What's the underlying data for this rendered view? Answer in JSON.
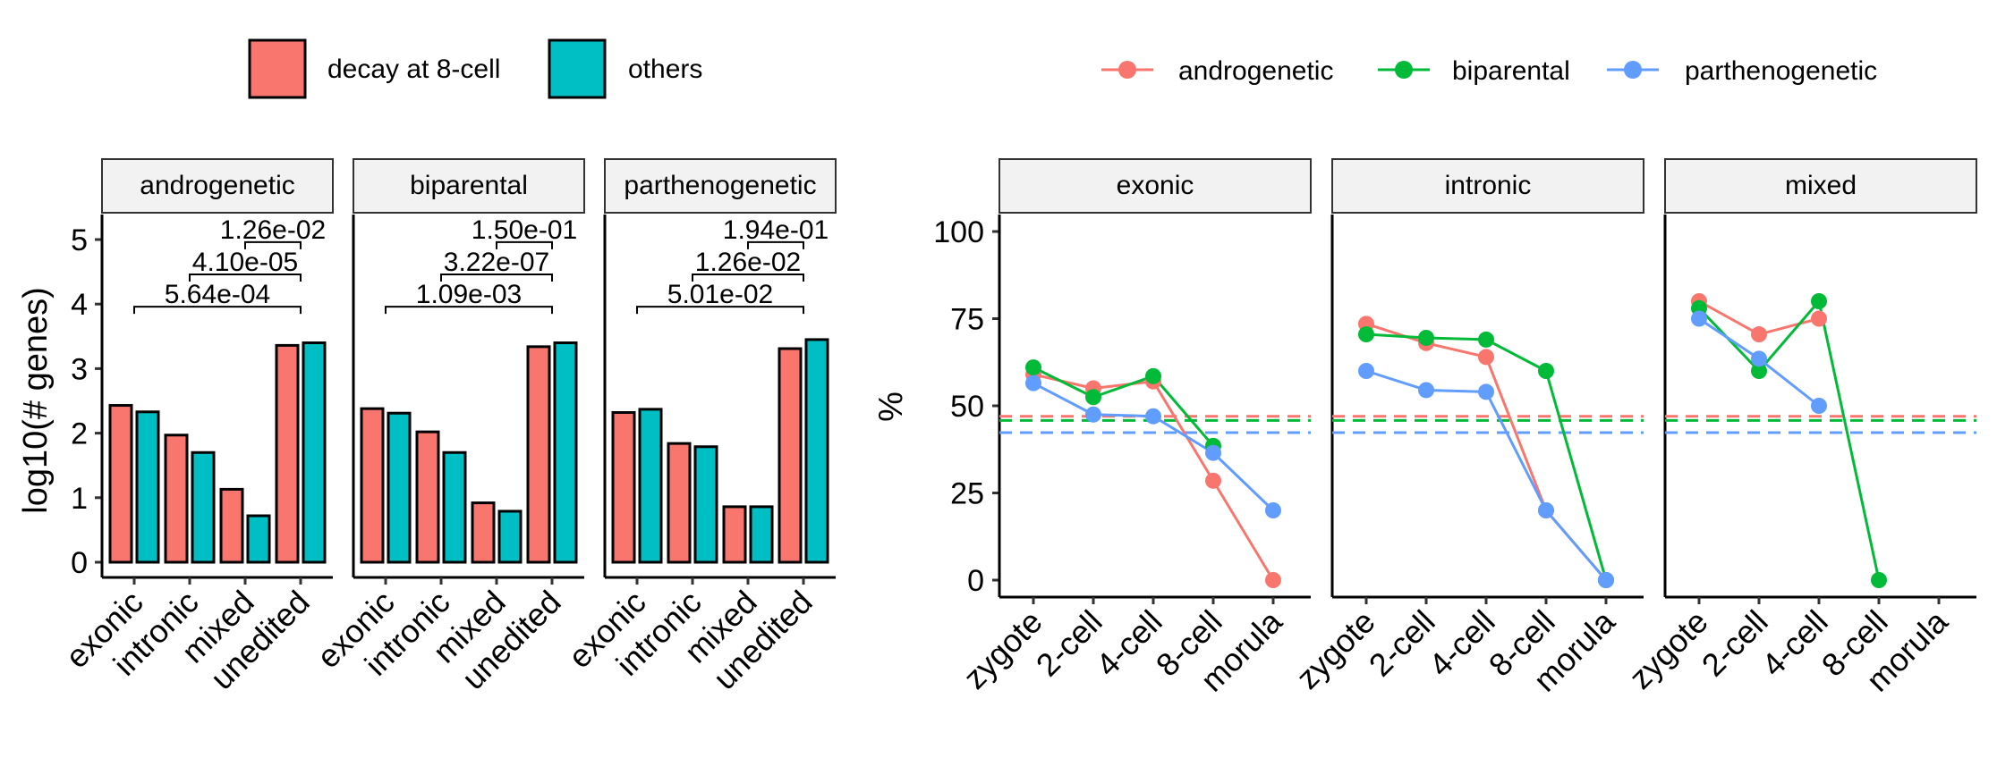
{
  "chart_data": [
    {
      "type": "bar",
      "ylabel": "log10(# genes)",
      "xlabel": "",
      "ylim": [
        0,
        5
      ],
      "yticks": [
        "0",
        "1",
        "2",
        "3",
        "4",
        "5"
      ],
      "categories": [
        "exonic",
        "intronic",
        "mixed",
        "unedited"
      ],
      "legend": {
        "position": "top",
        "entries": [
          {
            "label": "decay at 8-cell",
            "color": "#F8766D"
          },
          {
            "label": "others",
            "color": "#00BFC4"
          }
        ]
      },
      "panels": [
        {
          "title": "androgenetic",
          "series": [
            {
              "name": "decay at 8-cell",
              "values": [
                2.43,
                1.97,
                1.13,
                3.36
              ]
            },
            {
              "name": "others",
              "values": [
                2.33,
                1.7,
                0.72,
                3.4
              ]
            }
          ],
          "annotations": [
            {
              "text": "5.64e-04",
              "from": "exonic",
              "to": "unedited",
              "y": 3.96
            },
            {
              "text": "4.10e-05",
              "from": "intronic",
              "to": "unedited",
              "y": 4.46
            },
            {
              "text": "1.26e-02",
              "from": "mixed",
              "to": "unedited",
              "y": 4.96
            }
          ]
        },
        {
          "title": "biparental",
          "series": [
            {
              "name": "decay at 8-cell",
              "values": [
                2.38,
                2.02,
                0.92,
                3.34
              ]
            },
            {
              "name": "others",
              "values": [
                2.31,
                1.7,
                0.79,
                3.4
              ]
            }
          ],
          "annotations": [
            {
              "text": "1.09e-03",
              "from": "exonic",
              "to": "unedited",
              "y": 3.96
            },
            {
              "text": "3.22e-07",
              "from": "intronic",
              "to": "unedited",
              "y": 4.46
            },
            {
              "text": "1.50e-01",
              "from": "mixed",
              "to": "unedited",
              "y": 4.96
            }
          ]
        },
        {
          "title": "parthenogenetic",
          "series": [
            {
              "name": "decay at 8-cell",
              "values": [
                2.32,
                1.84,
                0.86,
                3.31
              ]
            },
            {
              "name": "others",
              "values": [
                2.37,
                1.79,
                0.86,
                3.45
              ]
            }
          ],
          "annotations": [
            {
              "text": "5.01e-02",
              "from": "exonic",
              "to": "unedited",
              "y": 3.96
            },
            {
              "text": "1.26e-02",
              "from": "intronic",
              "to": "unedited",
              "y": 4.46
            },
            {
              "text": "1.94e-01",
              "from": "mixed",
              "to": "unedited",
              "y": 4.96
            }
          ]
        }
      ]
    },
    {
      "type": "line",
      "ylabel": "%",
      "xlabel": "",
      "ylim": [
        0,
        100
      ],
      "yticks": [
        "0",
        "25",
        "50",
        "75",
        "100"
      ],
      "x": [
        "zygote",
        "2-cell",
        "4-cell",
        "8-cell",
        "morula"
      ],
      "legend": {
        "position": "top",
        "entries": [
          {
            "label": "androgenetic",
            "color": "#F8766D"
          },
          {
            "label": "biparental",
            "color": "#00BA38"
          },
          {
            "label": "parthenogenetic",
            "color": "#619CFF"
          }
        ]
      },
      "reference_lines": [
        {
          "series": "androgenetic",
          "y": 47.0,
          "style": "dashed"
        },
        {
          "series": "biparental",
          "y": 45.8,
          "style": "dashed"
        },
        {
          "series": "parthenogenetic",
          "y": 42.3,
          "style": "dashed"
        }
      ],
      "panels": [
        {
          "title": "exonic",
          "series": [
            {
              "name": "androgenetic",
              "values": [
                59,
                55,
                57,
                28.5,
                0
              ]
            },
            {
              "name": "biparental",
              "values": [
                61,
                52.5,
                58.5,
                38.5,
                null
              ]
            },
            {
              "name": "parthenogenetic",
              "values": [
                56.5,
                47.5,
                47,
                36.5,
                20
              ]
            }
          ]
        },
        {
          "title": "intronic",
          "series": [
            {
              "name": "androgenetic",
              "values": [
                73.5,
                68,
                64,
                20,
                0
              ]
            },
            {
              "name": "biparental",
              "values": [
                70.5,
                69.5,
                69,
                60,
                0
              ]
            },
            {
              "name": "parthenogenetic",
              "values": [
                60,
                54.5,
                54,
                20,
                0
              ]
            }
          ]
        },
        {
          "title": "mixed",
          "series": [
            {
              "name": "androgenetic",
              "values": [
                80,
                70.5,
                75,
                null,
                null
              ]
            },
            {
              "name": "biparental",
              "values": [
                78,
                60,
                80,
                0,
                null
              ]
            },
            {
              "name": "parthenogenetic",
              "values": [
                75,
                63.5,
                50,
                null,
                null
              ]
            }
          ]
        }
      ]
    }
  ]
}
